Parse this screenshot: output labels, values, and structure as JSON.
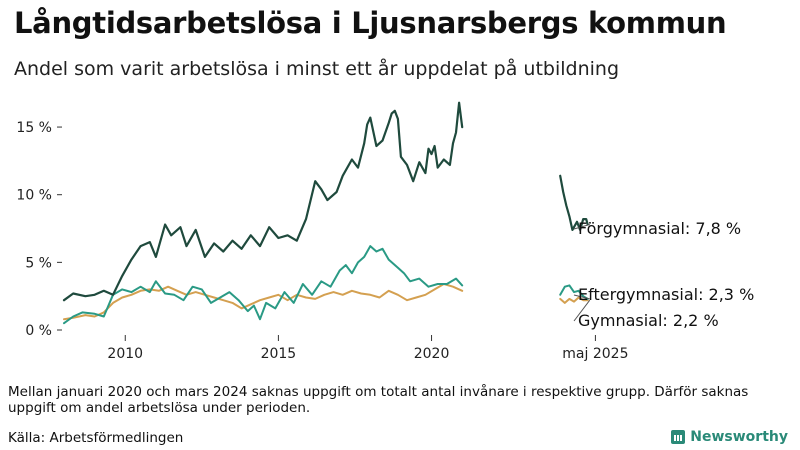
{
  "title": "Långtidsarbetslösa i Ljusnarsbergs kommun",
  "subtitle": "Andel som varit arbetslösa i minst ett år uppdelat på utbildning",
  "note": "Mellan januari 2020 och mars 2024 saknas uppgift om totalt antal invånare i respektive grupp. Därför saknas uppgift om andel arbetslösa under perioden.",
  "source": "Källa: Arbetsförmedlingen",
  "brand": "Newsworthy",
  "colors": {
    "forgymnasial": "#1f4a3d",
    "eftergymnasial": "#2a9a85",
    "gymnasial": "#d4a050"
  },
  "chart_data": {
    "type": "line",
    "title": "Långtidsarbetslösa i Ljusnarsbergs kommun",
    "ylabel": "",
    "ylim": [
      0,
      17
    ],
    "yticks": [
      0,
      5,
      10,
      15
    ],
    "ytick_labels": [
      "0 %",
      "5 %",
      "10 %",
      "15 %"
    ],
    "xlim": [
      2008.0,
      2025.5
    ],
    "xticks": [
      2010,
      2015,
      2020,
      2025.35
    ],
    "xtick_labels": [
      "2010",
      "2015",
      "2020",
      "maj 2025"
    ],
    "gap": [
      2021.0,
      2024.2
    ],
    "series": [
      {
        "name": "Förgymnasial",
        "end_label": "Förgymnasial: 7,8 %",
        "color_key": "forgymnasial",
        "segments": [
          [
            [
              2008.0,
              2.2
            ],
            [
              2008.3,
              2.7
            ],
            [
              2008.7,
              2.5
            ],
            [
              2009.0,
              2.6
            ],
            [
              2009.3,
              2.9
            ],
            [
              2009.6,
              2.6
            ],
            [
              2009.9,
              4.0
            ],
            [
              2010.2,
              5.2
            ],
            [
              2010.5,
              6.2
            ],
            [
              2010.8,
              6.5
            ],
            [
              2011.0,
              5.4
            ],
            [
              2011.3,
              7.8
            ],
            [
              2011.5,
              7.0
            ],
            [
              2011.8,
              7.6
            ],
            [
              2012.0,
              6.2
            ],
            [
              2012.3,
              7.4
            ],
            [
              2012.6,
              5.4
            ],
            [
              2012.9,
              6.4
            ],
            [
              2013.2,
              5.8
            ],
            [
              2013.5,
              6.6
            ],
            [
              2013.8,
              6.0
            ],
            [
              2014.1,
              7.0
            ],
            [
              2014.4,
              6.2
            ],
            [
              2014.7,
              7.6
            ],
            [
              2015.0,
              6.8
            ],
            [
              2015.3,
              7.0
            ],
            [
              2015.6,
              6.6
            ],
            [
              2015.9,
              8.2
            ],
            [
              2016.2,
              11.0
            ],
            [
              2016.4,
              10.4
            ],
            [
              2016.6,
              9.6
            ],
            [
              2016.9,
              10.2
            ],
            [
              2017.1,
              11.4
            ],
            [
              2017.4,
              12.6
            ],
            [
              2017.6,
              12.0
            ],
            [
              2017.8,
              13.8
            ],
            [
              2017.9,
              15.2
            ],
            [
              2018.0,
              15.7
            ],
            [
              2018.2,
              13.6
            ],
            [
              2018.4,
              14.0
            ],
            [
              2018.6,
              15.3
            ],
            [
              2018.7,
              16.0
            ],
            [
              2018.8,
              16.2
            ],
            [
              2018.9,
              15.6
            ],
            [
              2019.0,
              12.8
            ],
            [
              2019.2,
              12.2
            ],
            [
              2019.4,
              11.0
            ],
            [
              2019.6,
              12.4
            ],
            [
              2019.8,
              11.6
            ],
            [
              2019.9,
              13.4
            ],
            [
              2020.0,
              13.0
            ],
            [
              2020.1,
              13.6
            ],
            [
              2020.2,
              12.0
            ],
            [
              2020.4,
              12.6
            ],
            [
              2020.6,
              12.2
            ],
            [
              2020.7,
              13.8
            ],
            [
              2020.8,
              14.6
            ],
            [
              2020.9,
              16.8
            ],
            [
              2021.0,
              15.0
            ]
          ],
          [
            [
              2024.2,
              11.4
            ],
            [
              2024.3,
              10.2
            ],
            [
              2024.4,
              9.2
            ],
            [
              2024.5,
              8.4
            ],
            [
              2024.6,
              7.4
            ],
            [
              2024.75,
              8.0
            ],
            [
              2024.85,
              7.4
            ],
            [
              2024.95,
              8.2
            ],
            [
              2025.05,
              8.2
            ],
            [
              2025.1,
              7.8
            ]
          ]
        ]
      },
      {
        "name": "Eftergymnasial",
        "end_label": "Eftergymnasial: 2,3 %",
        "color_key": "eftergymnasial",
        "segments": [
          [
            [
              2008.0,
              0.5
            ],
            [
              2008.3,
              1.0
            ],
            [
              2008.6,
              1.3
            ],
            [
              2009.0,
              1.2
            ],
            [
              2009.3,
              1.0
            ],
            [
              2009.6,
              2.6
            ],
            [
              2009.9,
              3.0
            ],
            [
              2010.2,
              2.8
            ],
            [
              2010.5,
              3.2
            ],
            [
              2010.8,
              2.8
            ],
            [
              2011.0,
              3.6
            ],
            [
              2011.3,
              2.7
            ],
            [
              2011.6,
              2.6
            ],
            [
              2011.9,
              2.2
            ],
            [
              2012.2,
              3.2
            ],
            [
              2012.5,
              3.0
            ],
            [
              2012.8,
              2.0
            ],
            [
              2013.1,
              2.4
            ],
            [
              2013.4,
              2.8
            ],
            [
              2013.7,
              2.2
            ],
            [
              2014.0,
              1.4
            ],
            [
              2014.2,
              1.8
            ],
            [
              2014.4,
              0.8
            ],
            [
              2014.6,
              2.0
            ],
            [
              2014.9,
              1.6
            ],
            [
              2015.2,
              2.8
            ],
            [
              2015.5,
              2.0
            ],
            [
              2015.8,
              3.4
            ],
            [
              2016.1,
              2.6
            ],
            [
              2016.4,
              3.6
            ],
            [
              2016.7,
              3.2
            ],
            [
              2017.0,
              4.4
            ],
            [
              2017.2,
              4.8
            ],
            [
              2017.4,
              4.2
            ],
            [
              2017.6,
              5.0
            ],
            [
              2017.8,
              5.4
            ],
            [
              2018.0,
              6.2
            ],
            [
              2018.2,
              5.8
            ],
            [
              2018.4,
              6.0
            ],
            [
              2018.6,
              5.2
            ],
            [
              2018.9,
              4.6
            ],
            [
              2019.1,
              4.2
            ],
            [
              2019.3,
              3.6
            ],
            [
              2019.6,
              3.8
            ],
            [
              2019.9,
              3.2
            ],
            [
              2020.2,
              3.4
            ],
            [
              2020.5,
              3.4
            ],
            [
              2020.8,
              3.8
            ],
            [
              2021.0,
              3.3
            ]
          ],
          [
            [
              2024.2,
              2.6
            ],
            [
              2024.35,
              3.2
            ],
            [
              2024.5,
              3.3
            ],
            [
              2024.65,
              2.8
            ],
            [
              2024.8,
              2.9
            ],
            [
              2024.95,
              2.5
            ],
            [
              2025.1,
              2.3
            ]
          ]
        ]
      },
      {
        "name": "Gymnasial",
        "end_label": "Gymnasial: 2,2 %",
        "color_key": "gymnasial",
        "segments": [
          [
            [
              2008.0,
              0.8
            ],
            [
              2008.3,
              0.9
            ],
            [
              2008.7,
              1.1
            ],
            [
              2009.0,
              1.0
            ],
            [
              2009.3,
              1.3
            ],
            [
              2009.6,
              2.0
            ],
            [
              2009.9,
              2.4
            ],
            [
              2010.2,
              2.6
            ],
            [
              2010.5,
              2.9
            ],
            [
              2010.8,
              3.0
            ],
            [
              2011.1,
              2.9
            ],
            [
              2011.4,
              3.2
            ],
            [
              2011.7,
              2.9
            ],
            [
              2012.0,
              2.6
            ],
            [
              2012.3,
              2.8
            ],
            [
              2012.6,
              2.6
            ],
            [
              2012.9,
              2.4
            ],
            [
              2013.2,
              2.2
            ],
            [
              2013.5,
              2.0
            ],
            [
              2013.8,
              1.6
            ],
            [
              2014.1,
              1.9
            ],
            [
              2014.4,
              2.2
            ],
            [
              2014.7,
              2.4
            ],
            [
              2015.0,
              2.6
            ],
            [
              2015.3,
              2.2
            ],
            [
              2015.6,
              2.6
            ],
            [
              2015.9,
              2.4
            ],
            [
              2016.2,
              2.3
            ],
            [
              2016.5,
              2.6
            ],
            [
              2016.8,
              2.8
            ],
            [
              2017.1,
              2.6
            ],
            [
              2017.4,
              2.9
            ],
            [
              2017.7,
              2.7
            ],
            [
              2018.0,
              2.6
            ],
            [
              2018.3,
              2.4
            ],
            [
              2018.6,
              2.9
            ],
            [
              2018.9,
              2.6
            ],
            [
              2019.2,
              2.2
            ],
            [
              2019.5,
              2.4
            ],
            [
              2019.8,
              2.6
            ],
            [
              2020.1,
              3.0
            ],
            [
              2020.4,
              3.4
            ],
            [
              2020.7,
              3.2
            ],
            [
              2021.0,
              2.9
            ]
          ],
          [
            [
              2024.2,
              2.3
            ],
            [
              2024.35,
              2.0
            ],
            [
              2024.5,
              2.3
            ],
            [
              2024.65,
              2.1
            ],
            [
              2024.8,
              2.4
            ],
            [
              2024.95,
              2.2
            ],
            [
              2025.1,
              2.2
            ]
          ]
        ]
      }
    ]
  }
}
